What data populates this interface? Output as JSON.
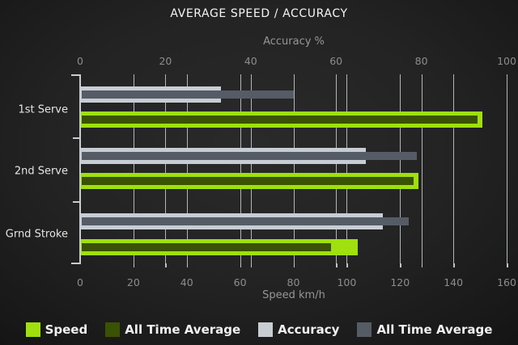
{
  "title": "AVERAGE SPEED / ACCURACY",
  "chart_data": {
    "type": "bar",
    "orientation": "horizontal",
    "title": "AVERAGE SPEED / ACCURACY",
    "categories": [
      "1st Serve",
      "2nd Serve",
      "Grnd Stroke"
    ],
    "series": [
      {
        "name": "Speed",
        "axis": "speed",
        "color": "#9fe00e",
        "values": [
          151,
          127,
          104
        ]
      },
      {
        "name": "All Time Average",
        "axis": "speed",
        "color": "#3a5203",
        "values": [
          149,
          125,
          94
        ]
      },
      {
        "name": "Accuracy",
        "axis": "accuracy",
        "color": "#c7cdd3",
        "values": [
          33,
          67,
          71
        ]
      },
      {
        "name": "All Time Average",
        "axis": "accuracy",
        "color": "#555c66",
        "values": [
          50,
          79,
          77
        ]
      }
    ],
    "axes": {
      "top": {
        "label": "Accuracy %",
        "min": 0,
        "max": 100,
        "ticks": [
          0,
          20,
          40,
          60,
          80,
          100
        ]
      },
      "bottom": {
        "label": "Speed km/h",
        "min": 0,
        "max": 160,
        "ticks": [
          0,
          20,
          40,
          60,
          80,
          100,
          120,
          140,
          160
        ]
      }
    },
    "grid": true,
    "legend_position": "bottom"
  },
  "legend": {
    "items": [
      {
        "label": "Speed",
        "color": "#9fe00e"
      },
      {
        "label": "All Time Average",
        "color": "#3a5203"
      },
      {
        "label": "Accuracy",
        "color": "#c7cdd3"
      },
      {
        "label": "All Time Average",
        "color": "#555c66"
      }
    ]
  },
  "colors": {
    "background_center": "#2a2a2a",
    "background_edge": "#0e0e0e",
    "title_text": "#f5f5f5",
    "axis_text": "#8d8d8d",
    "category_text": "#e4e4e4",
    "gridline": "#b2b5b7",
    "speed_bar": "#9fe00e",
    "speed_avg_bar": "#3a5203",
    "accuracy_bar": "#c7cdd3",
    "accuracy_avg_bar": "#555c66"
  }
}
